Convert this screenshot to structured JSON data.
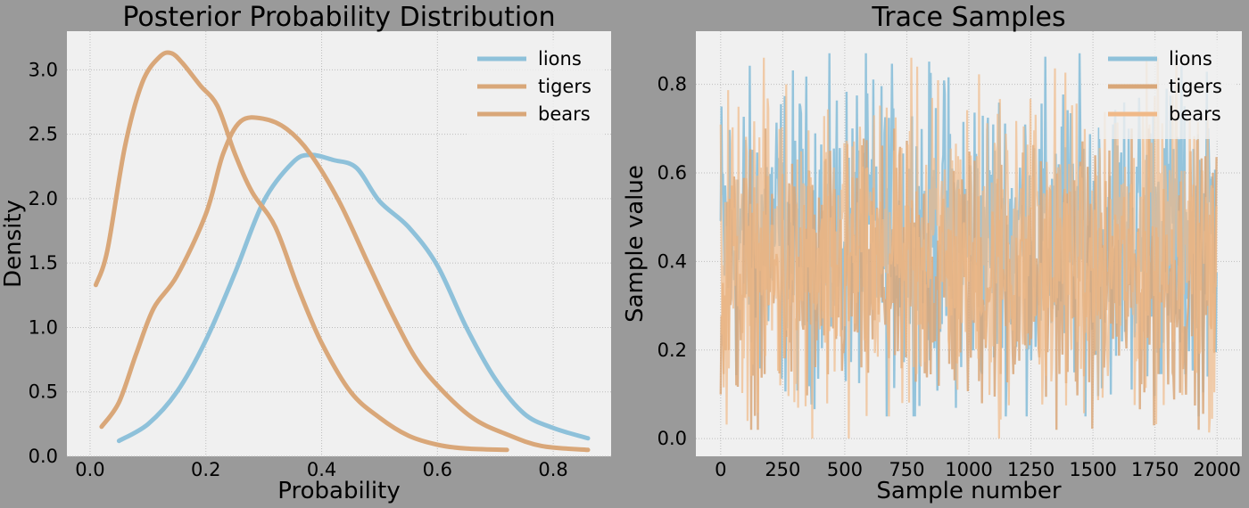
{
  "chart_data": [
    {
      "type": "line",
      "title": "Posterior Probability Distribution",
      "xlabel": "Probability",
      "ylabel": "Density",
      "xlim": [
        -0.04,
        0.9
      ],
      "ylim": [
        0,
        3.3
      ],
      "xticks": [
        0.0,
        0.2,
        0.4,
        0.6,
        0.8
      ],
      "xtick_labels": [
        "0.0",
        "0.2",
        "0.4",
        "0.6",
        "0.8"
      ],
      "yticks": [
        0.0,
        0.5,
        1.0,
        1.5,
        2.0,
        2.5,
        3.0
      ],
      "ytick_labels": [
        "0.0",
        "0.5",
        "1.0",
        "1.5",
        "2.0",
        "2.5",
        "3.0"
      ],
      "grid": true,
      "legend": "top-right",
      "series": [
        {
          "name": "lions",
          "color": "#8ec1da",
          "x": [
            0.05,
            0.1,
            0.15,
            0.2,
            0.25,
            0.3,
            0.35,
            0.38,
            0.42,
            0.46,
            0.5,
            0.55,
            0.6,
            0.65,
            0.7,
            0.75,
            0.8,
            0.86
          ],
          "y": [
            0.12,
            0.25,
            0.5,
            0.9,
            1.42,
            1.98,
            2.28,
            2.34,
            2.3,
            2.24,
            1.98,
            1.78,
            1.48,
            1.0,
            0.6,
            0.33,
            0.22,
            0.14
          ]
        },
        {
          "name": "tigers",
          "color": "#d9a779",
          "x": [
            0.01,
            0.03,
            0.06,
            0.09,
            0.12,
            0.14,
            0.16,
            0.19,
            0.22,
            0.25,
            0.28,
            0.32,
            0.36,
            0.4,
            0.45,
            0.5,
            0.55,
            0.6,
            0.65,
            0.72
          ],
          "y": [
            1.33,
            1.6,
            2.4,
            2.9,
            3.1,
            3.13,
            3.05,
            2.88,
            2.72,
            2.35,
            2.05,
            1.78,
            1.3,
            0.88,
            0.5,
            0.3,
            0.16,
            0.09,
            0.06,
            0.05
          ]
        },
        {
          "name": "bears",
          "color": "#d9a779",
          "x": [
            0.02,
            0.05,
            0.08,
            0.11,
            0.15,
            0.2,
            0.23,
            0.26,
            0.3,
            0.34,
            0.38,
            0.43,
            0.48,
            0.52,
            0.56,
            0.6,
            0.66,
            0.72,
            0.78,
            0.86
          ],
          "y": [
            0.23,
            0.42,
            0.8,
            1.15,
            1.4,
            1.88,
            2.35,
            2.6,
            2.62,
            2.54,
            2.35,
            1.98,
            1.5,
            1.12,
            0.78,
            0.55,
            0.3,
            0.17,
            0.08,
            0.05
          ]
        }
      ]
    },
    {
      "type": "line",
      "title": "Trace Samples",
      "xlabel": "Sample number",
      "ylabel": "Sample value",
      "xlim": [
        -100,
        2100
      ],
      "ylim": [
        -0.04,
        0.92
      ],
      "xticks": [
        0,
        250,
        500,
        750,
        1000,
        1250,
        1500,
        1750,
        2000
      ],
      "xtick_labels": [
        "0",
        "250",
        "500",
        "750",
        "1000",
        "1250",
        "1500",
        "1750",
        "2000"
      ],
      "yticks": [
        0.0,
        0.2,
        0.4,
        0.6,
        0.8
      ],
      "ytick_labels": [
        "0.0",
        "0.2",
        "0.4",
        "0.6",
        "0.8"
      ],
      "grid": true,
      "legend": "top-right",
      "n_samples": 2000,
      "series": [
        {
          "name": "lions",
          "color": "#8ec1da",
          "value_range": [
            0.05,
            0.87
          ]
        },
        {
          "name": "tigers",
          "color": "#d9a779",
          "value_range": [
            0.02,
            0.7
          ]
        },
        {
          "name": "bears",
          "color": "#f0b988",
          "value_range": [
            0.0,
            0.86
          ]
        }
      ]
    }
  ]
}
